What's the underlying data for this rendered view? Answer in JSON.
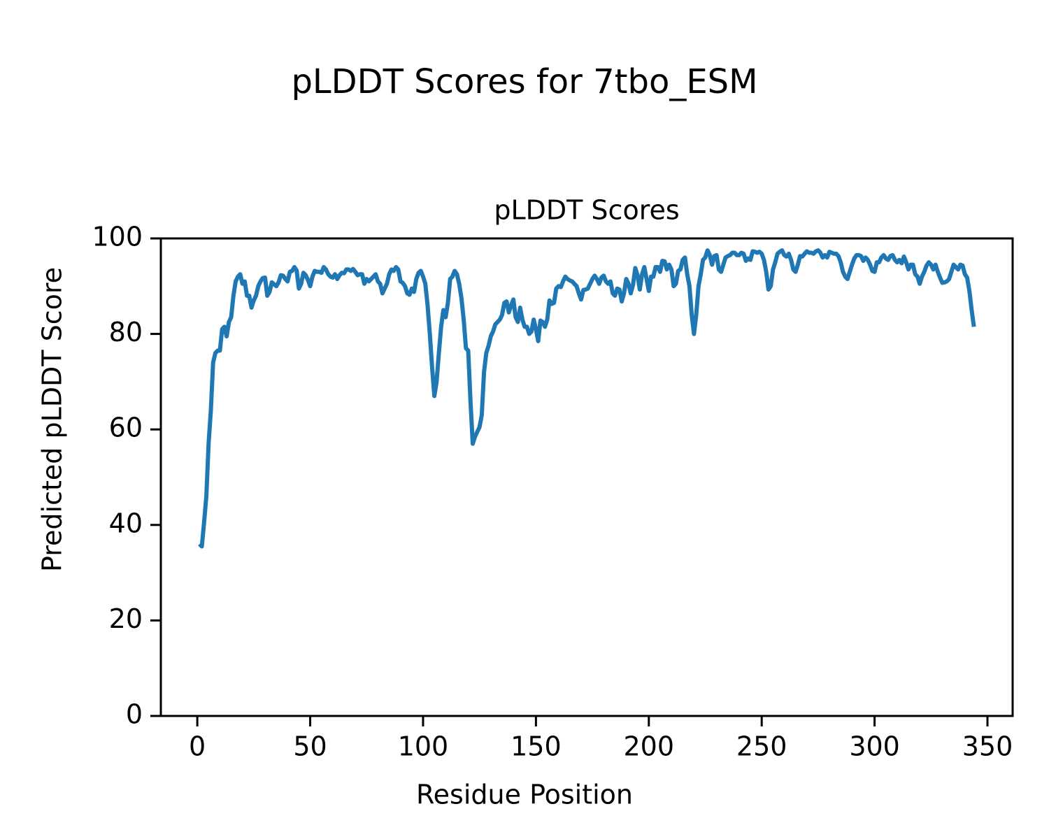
{
  "chart_data": {
    "type": "line",
    "suptitle": "pLDDT Scores for 7tbo_ESM",
    "title": "pLDDT Scores",
    "xlabel": "Residue Position",
    "ylabel": "Predicted pLDDT Score",
    "xlim": [
      -16.15,
      361.15
    ],
    "ylim": [
      0,
      100
    ],
    "xticks": [
      0,
      50,
      100,
      150,
      200,
      250,
      300,
      350
    ],
    "yticks": [
      0,
      20,
      40,
      60,
      80,
      100
    ],
    "x": [
      1,
      2,
      3,
      4,
      5,
      6,
      7,
      8,
      9,
      10,
      11,
      12,
      13,
      14,
      15,
      16,
      17,
      18,
      19,
      20,
      21,
      22,
      23,
      24,
      25,
      26,
      27,
      28,
      29,
      30,
      31,
      32,
      33,
      34,
      35,
      36,
      37,
      38,
      39,
      40,
      41,
      42,
      43,
      44,
      45,
      46,
      47,
      48,
      49,
      50,
      51,
      52,
      53,
      54,
      55,
      56,
      57,
      58,
      59,
      60,
      61,
      62,
      63,
      64,
      65,
      66,
      67,
      68,
      69,
      70,
      71,
      72,
      73,
      74,
      75,
      76,
      77,
      78,
      79,
      80,
      81,
      82,
      83,
      84,
      85,
      86,
      87,
      88,
      89,
      90,
      91,
      92,
      93,
      94,
      95,
      96,
      97,
      98,
      99,
      100,
      101,
      102,
      103,
      104,
      105,
      106,
      107,
      108,
      109,
      110,
      111,
      112,
      113,
      114,
      115,
      116,
      117,
      118,
      119,
      120,
      121,
      122,
      123,
      124,
      125,
      126,
      127,
      128,
      129,
      130,
      131,
      132,
      133,
      134,
      135,
      136,
      137,
      138,
      139,
      140,
      141,
      142,
      143,
      144,
      145,
      146,
      147,
      148,
      149,
      150,
      151,
      152,
      153,
      154,
      155,
      156,
      157,
      158,
      159,
      160,
      161,
      162,
      163,
      164,
      165,
      166,
      167,
      168,
      169,
      170,
      171,
      172,
      173,
      174,
      175,
      176,
      177,
      178,
      179,
      180,
      181,
      182,
      183,
      184,
      185,
      186,
      187,
      188,
      189,
      190,
      191,
      192,
      193,
      194,
      195,
      196,
      197,
      198,
      199,
      200,
      201,
      202,
      203,
      204,
      205,
      206,
      207,
      208,
      209,
      210,
      211,
      212,
      213,
      214,
      215,
      216,
      217,
      218,
      219,
      220,
      221,
      222,
      223,
      224,
      225,
      226,
      227,
      228,
      229,
      230,
      231,
      232,
      233,
      234,
      235,
      236,
      237,
      238,
      239,
      240,
      241,
      242,
      243,
      244,
      245,
      246,
      247,
      248,
      249,
      250,
      251,
      252,
      253,
      254,
      255,
      256,
      257,
      258,
      259,
      260,
      261,
      262,
      263,
      264,
      265,
      266,
      267,
      268,
      269,
      270,
      271,
      272,
      273,
      274,
      275,
      276,
      277,
      278,
      279,
      280,
      281,
      282,
      283,
      284,
      285,
      286,
      287,
      288,
      289,
      290,
      291,
      292,
      293,
      294,
      295,
      296,
      297,
      298,
      299,
      300,
      301,
      302,
      303,
      304,
      305,
      306,
      307,
      308,
      309,
      310,
      311,
      312,
      313,
      314,
      315,
      316,
      317,
      318,
      319,
      320,
      321,
      322,
      323,
      324,
      325,
      326,
      327,
      328,
      329,
      330,
      331,
      332,
      333,
      334,
      335,
      336,
      337,
      338,
      339,
      340,
      341,
      342,
      343,
      344
    ],
    "series": [
      {
        "color": "#1f77b4",
        "values": [
          36,
          35.5,
          40.5,
          46,
          57,
          64,
          74,
          76,
          76.5,
          76.5,
          81,
          81.5,
          79.5,
          82.5,
          83.5,
          88,
          91,
          92,
          92.5,
          90.5,
          91,
          88,
          88,
          85.5,
          87,
          88,
          90,
          91,
          91.7,
          91.8,
          88,
          88.8,
          90.8,
          90.4,
          90,
          90.8,
          92.3,
          92.2,
          91.5,
          91,
          93,
          93.2,
          94,
          93.3,
          89.5,
          90.5,
          92.8,
          92.3,
          91.3,
          90,
          92,
          93.2,
          93,
          93,
          92.8,
          94,
          93.5,
          92.5,
          92,
          91.8,
          92.5,
          91.5,
          92.3,
          92.8,
          92.7,
          93.5,
          93.5,
          93.2,
          93.6,
          93,
          92.3,
          92.5,
          92.5,
          90.5,
          91.5,
          91,
          91.5,
          92,
          92.5,
          91,
          90.5,
          88.5,
          89.5,
          90.5,
          92.5,
          93.5,
          93.2,
          94,
          93.5,
          91,
          90.7,
          90,
          88.5,
          88.2,
          89.5,
          88.8,
          91.5,
          92.8,
          93.2,
          92,
          90.5,
          86,
          80,
          73,
          67,
          70,
          76,
          81.5,
          85,
          83.5,
          86.5,
          91.5,
          92,
          93.2,
          92.5,
          90.5,
          87.5,
          83,
          77,
          76.5,
          66,
          57,
          58.5,
          59.5,
          60.5,
          63,
          72,
          76,
          77.5,
          79.5,
          80.5,
          82,
          82.5,
          83,
          84,
          86.5,
          86.8,
          84.5,
          86,
          87.2,
          83.5,
          82.5,
          85.5,
          83,
          81.5,
          81.5,
          80,
          80.5,
          83,
          81,
          78.5,
          82.8,
          82.5,
          81.5,
          83,
          87,
          86.3,
          86.5,
          89.5,
          90,
          89.8,
          91,
          92,
          91.5,
          91.2,
          91,
          90.5,
          90,
          88.5,
          87.2,
          89.2,
          89.3,
          89.5,
          90.5,
          91.5,
          92.2,
          91.5,
          90.5,
          91.8,
          92.2,
          91,
          90.5,
          91,
          88.5,
          88,
          89.5,
          89.3,
          86.8,
          88.5,
          91.5,
          90.5,
          88.5,
          90.3,
          93.8,
          92.3,
          89.3,
          92.5,
          94,
          91.5,
          89,
          92,
          92,
          94,
          94,
          93,
          95.3,
          95.2,
          93.5,
          94.5,
          93.5,
          90,
          90.5,
          93.2,
          93.5,
          95.5,
          96,
          92.5,
          90,
          84,
          80,
          84,
          90,
          92.5,
          95.5,
          96,
          97.5,
          96.5,
          94.5,
          96.3,
          96.5,
          93.5,
          93,
          94.5,
          96,
          96.3,
          96.5,
          97,
          97,
          96.5,
          96.5,
          97,
          96.8,
          95.3,
          95.8,
          95.5,
          97.3,
          97.2,
          97,
          97.2,
          96.8,
          95.5,
          93,
          89.3,
          90,
          93.5,
          95,
          96.8,
          97.2,
          97.5,
          96.5,
          96.2,
          96.8,
          95.5,
          93.5,
          93,
          94.5,
          96.3,
          96.2,
          96.8,
          97.3,
          97,
          97,
          96.8,
          97.3,
          97.5,
          97,
          96,
          96.5,
          96,
          97.2,
          97,
          96.8,
          96.8,
          96.3,
          95,
          93,
          92,
          91.5,
          93,
          94.5,
          95.8,
          96.5,
          96.5,
          96.3,
          95.3,
          96,
          95.5,
          94.5,
          93.2,
          93,
          95,
          95,
          96,
          96.5,
          95.8,
          95.5,
          96.3,
          96.5,
          95.5,
          95,
          95.5,
          94.8,
          96.2,
          95,
          93.5,
          94.5,
          94.5,
          92.5,
          92,
          90.5,
          92,
          93,
          94.3,
          95,
          94.5,
          93.5,
          94.5,
          93,
          91.8,
          90.7,
          90.8,
          91,
          91.5,
          93,
          94.5,
          94,
          93.5,
          94.5,
          94.3,
          92.5,
          91.8,
          89,
          85,
          81.5
        ]
      }
    ]
  }
}
